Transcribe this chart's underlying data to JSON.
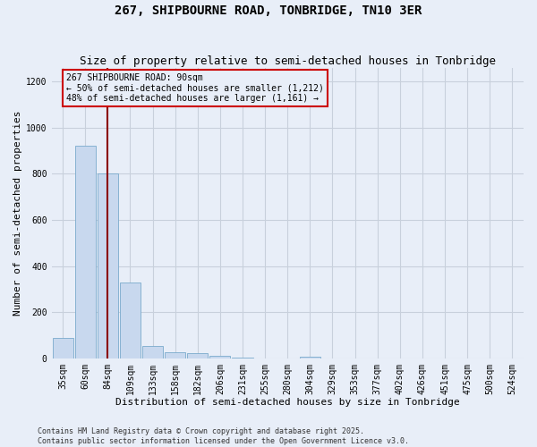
{
  "title": "267, SHIPBOURNE ROAD, TONBRIDGE, TN10 3ER",
  "subtitle": "Size of property relative to semi-detached houses in Tonbridge",
  "xlabel": "Distribution of semi-detached houses by size in Tonbridge",
  "ylabel": "Number of semi-detached properties",
  "categories": [
    "35sqm",
    "60sqm",
    "84sqm",
    "109sqm",
    "133sqm",
    "158sqm",
    "182sqm",
    "206sqm",
    "231sqm",
    "255sqm",
    "280sqm",
    "304sqm",
    "329sqm",
    "353sqm",
    "377sqm",
    "402sqm",
    "426sqm",
    "451sqm",
    "475sqm",
    "500sqm",
    "524sqm"
  ],
  "values": [
    90,
    920,
    800,
    330,
    55,
    25,
    22,
    10,
    3,
    0,
    0,
    5,
    0,
    0,
    0,
    0,
    0,
    0,
    0,
    0,
    0
  ],
  "bar_color": "#c8d8ee",
  "bar_edge_color": "#7aabcc",
  "red_line_index": 2,
  "annotation_line1": "267 SHIPBOURNE ROAD: 90sqm",
  "annotation_line2": "← 50% of semi-detached houses are smaller (1,212)",
  "annotation_line3": "48% of semi-detached houses are larger (1,161) →",
  "footnote": "Contains HM Land Registry data © Crown copyright and database right 2025.\nContains public sector information licensed under the Open Government Licence v3.0.",
  "ylim": [
    0,
    1260
  ],
  "background_color": "#e8eef8",
  "plot_bg_color": "#e8eef8",
  "grid_color": "#c8d0dc",
  "title_fontsize": 10,
  "subtitle_fontsize": 9,
  "axis_label_fontsize": 8,
  "tick_fontsize": 7,
  "annot_fontsize": 7,
  "footnote_fontsize": 6
}
